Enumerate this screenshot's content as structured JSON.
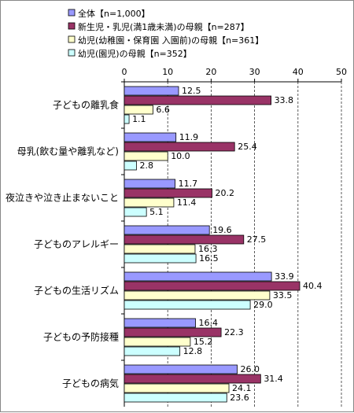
{
  "chart_data": {
    "type": "bar",
    "orientation": "horizontal",
    "categories": [
      "子どもの離乳食",
      "母乳(飲む量や離乳など)",
      "夜泣きや泣き止まないこと",
      "子どものアレルギー",
      "子どもの生活リズム",
      "子どもの予防接種",
      "子どもの病気"
    ],
    "series": [
      {
        "name": "全体【n=1,000】",
        "color": "#9999ff",
        "values": [
          12.5,
          11.9,
          11.7,
          19.6,
          33.9,
          16.4,
          26.0
        ]
      },
      {
        "name": "新生児・乳児(満1歳未満)の母親【n=287】",
        "color": "#993366",
        "values": [
          33.8,
          25.4,
          20.2,
          27.5,
          40.4,
          22.3,
          31.4
        ]
      },
      {
        "name": "幼児(幼稚園・保育園 入園前)の母親【n=361】",
        "color": "#ffffcc",
        "values": [
          6.6,
          10.0,
          11.4,
          16.3,
          33.5,
          15.2,
          24.1
        ]
      },
      {
        "name": "幼児(園児)の母親【n=352】",
        "color": "#ccffff",
        "values": [
          1.1,
          2.8,
          5.1,
          16.5,
          29.0,
          12.8,
          23.6
        ]
      }
    ],
    "xlim": [
      0,
      50
    ],
    "xticks": [
      0,
      10,
      20,
      30,
      40,
      50
    ],
    "value_labels": [
      [
        "12.5",
        "11.9",
        "11.7",
        "19.6",
        "33.9",
        "16.4",
        "26.0"
      ],
      [
        "33.8",
        "25.4",
        "20.2",
        "27.5",
        "40.4",
        "22.3",
        "31.4"
      ],
      [
        "6.6",
        "10.0",
        "11.4",
        "16.3",
        "33.5",
        "15.2",
        "24.1"
      ],
      [
        "1.1",
        "2.8",
        "5.1",
        "16.5",
        "29.0",
        "12.8",
        "23.6"
      ]
    ],
    "gridlines": "vertical-dashed",
    "legend_position": "top-left",
    "title": "",
    "xlabel": "",
    "ylabel": ""
  }
}
